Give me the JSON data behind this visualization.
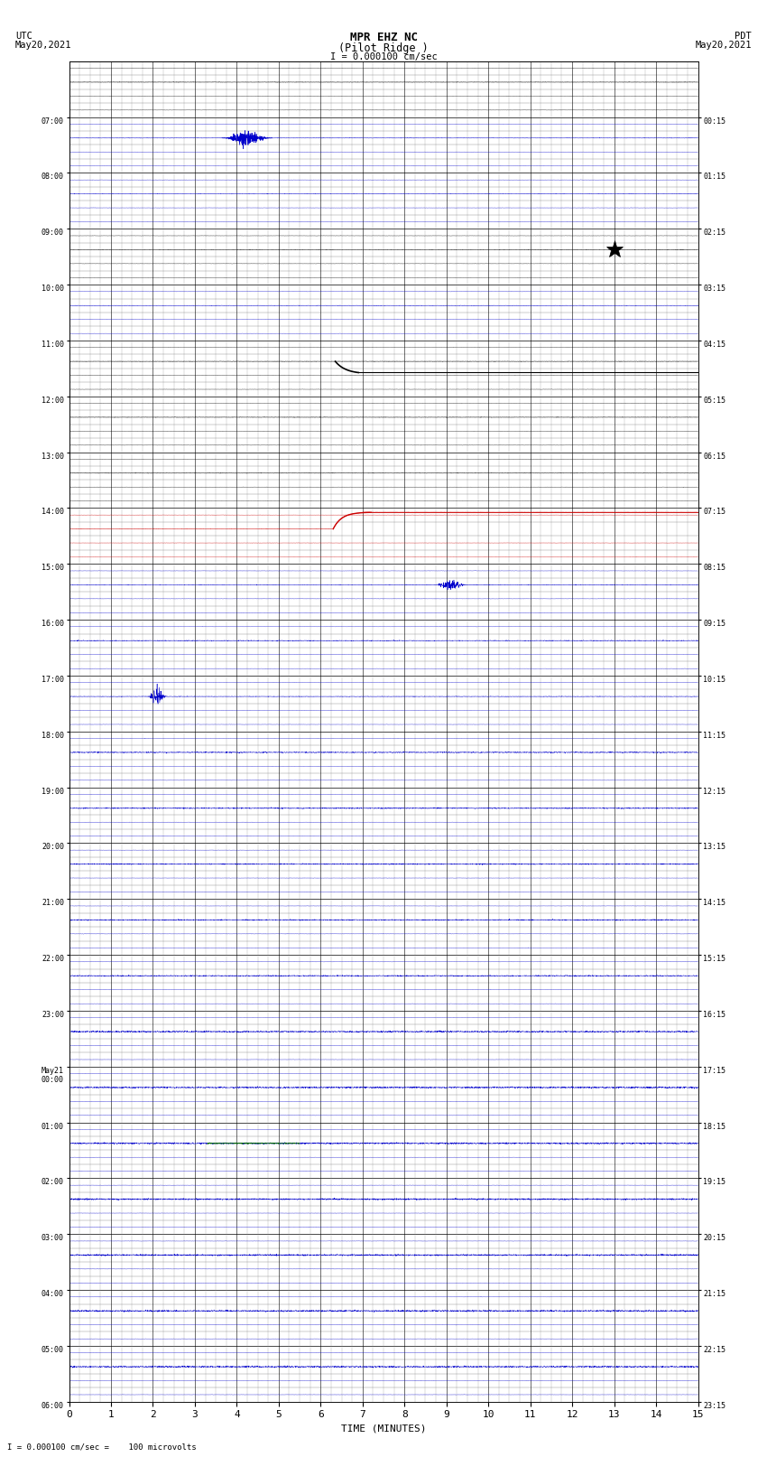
{
  "title_line1": "MPR EHZ NC",
  "title_line2": "(Pilot Ridge )",
  "scale_text": "I = 0.000100 cm/sec",
  "left_label": "UTC\nMay20,2021",
  "right_label": "PDT\nMay20,2021",
  "bottom_note": "I = 0.000100 cm/sec =    100 microvolts",
  "xlabel": "TIME (MINUTES)",
  "xlim": [
    0,
    15
  ],
  "xticks": [
    0,
    1,
    2,
    3,
    4,
    5,
    6,
    7,
    8,
    9,
    10,
    11,
    12,
    13,
    14,
    15
  ],
  "num_rows": 24,
  "lines_per_row": 4,
  "left_times": [
    "07:00",
    "08:00",
    "09:00",
    "10:00",
    "11:00",
    "12:00",
    "13:00",
    "14:00",
    "15:00",
    "16:00",
    "17:00",
    "18:00",
    "19:00",
    "20:00",
    "21:00",
    "22:00",
    "23:00",
    "May21\n00:00",
    "01:00",
    "02:00",
    "03:00",
    "04:00",
    "05:00",
    "06:00"
  ],
  "right_times": [
    "00:15",
    "01:15",
    "02:15",
    "03:15",
    "04:15",
    "05:15",
    "06:15",
    "07:15",
    "08:15",
    "09:15",
    "10:15",
    "11:15",
    "12:15",
    "13:15",
    "14:15",
    "15:15",
    "16:15",
    "17:15",
    "18:15",
    "19:15",
    "20:15",
    "21:15",
    "22:15",
    "23:15"
  ],
  "bg_color": "#ffffff",
  "grid_major_color": "#000000",
  "grid_minor_color": "#888888",
  "trace_color_blue": "#0000cc",
  "trace_color_black": "#000000",
  "trace_color_red": "#cc0000",
  "trace_color_green": "#006600",
  "noise_base": 0.003,
  "noise_mid": 0.004,
  "noise_high": 0.006
}
